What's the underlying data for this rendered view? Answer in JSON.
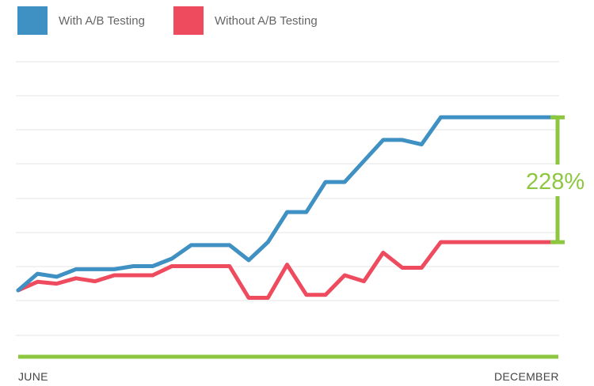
{
  "legend": [
    {
      "label": "With A/B Testing",
      "color": "#3f90c3"
    },
    {
      "label": "Without A/B Testing",
      "color": "#ef4b5f"
    }
  ],
  "annotation": {
    "label": "228%",
    "color": "#8dc63f"
  },
  "colors": {
    "grid": "#e6e6e6",
    "baseline": "#8dc63f"
  },
  "chart_data": {
    "type": "line",
    "xlabel": "",
    "ylabel": "",
    "grid": true,
    "legend_position": "top-left",
    "x_tick_labels": [
      "JUNE",
      "DECEMBER"
    ],
    "x": [
      0,
      1,
      2,
      3,
      4,
      5,
      6,
      7,
      8,
      9,
      10,
      11,
      12,
      13,
      14,
      15,
      16,
      17,
      18,
      19,
      20,
      21,
      22,
      23,
      24,
      25,
      26,
      27,
      28
    ],
    "ylim": [
      -1.5,
      7.6
    ],
    "series": [
      {
        "name": "With A/B Testing",
        "color": "#3f90c3",
        "values": [
          0.0,
          0.55,
          0.45,
          0.7,
          0.7,
          0.7,
          0.8,
          0.8,
          1.05,
          1.5,
          1.5,
          1.5,
          1.0,
          1.6,
          2.6,
          2.6,
          3.6,
          3.6,
          4.3,
          5.0,
          5.0,
          4.85,
          5.75,
          5.75,
          5.75,
          5.75,
          5.75,
          5.75,
          5.75
        ]
      },
      {
        "name": "Without A/B Testing",
        "color": "#ef4b5f",
        "values": [
          0.0,
          0.28,
          0.22,
          0.4,
          0.3,
          0.5,
          0.5,
          0.5,
          0.8,
          0.8,
          0.8,
          0.8,
          -0.25,
          -0.25,
          0.85,
          -0.15,
          -0.15,
          0.5,
          0.3,
          1.25,
          0.75,
          0.75,
          1.6,
          1.6,
          1.6,
          1.6,
          1.6,
          1.6,
          1.6
        ]
      }
    ]
  }
}
